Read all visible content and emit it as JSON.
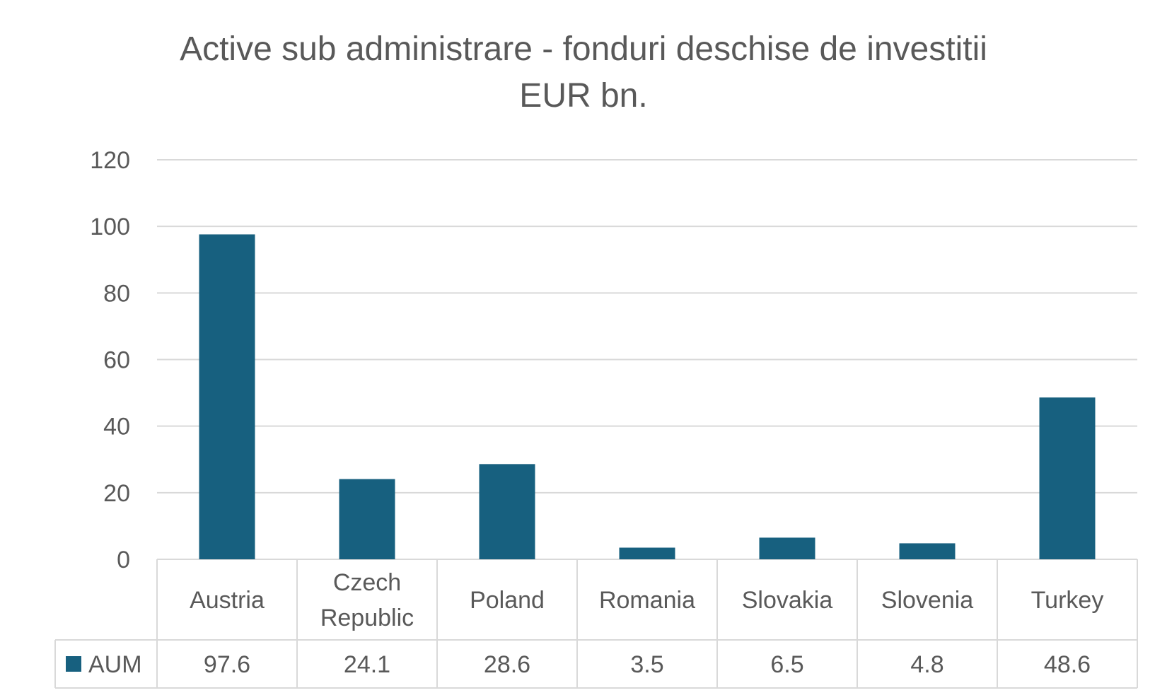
{
  "chart_data": {
    "type": "bar",
    "title": "Active sub administrare - fonduri deschise de investitii",
    "subtitle": "EUR bn.",
    "categories": [
      [
        "Austria"
      ],
      [
        "Czech",
        "Republic"
      ],
      [
        "Poland"
      ],
      [
        "Romania"
      ],
      [
        "Slovakia"
      ],
      [
        "Slovenia"
      ],
      [
        "Turkey"
      ]
    ],
    "series": [
      {
        "name": "AUM",
        "values": [
          97.6,
          24.1,
          28.6,
          3.5,
          6.5,
          4.8,
          48.6
        ],
        "color": "#17607F"
      }
    ],
    "data_table_values": [
      "97.6",
      "24.1",
      "28.6",
      "3.5",
      "6.5",
      "4.8",
      "48.6"
    ],
    "y_ticks": [
      0,
      20,
      40,
      60,
      80,
      100,
      120
    ],
    "ylim": [
      0,
      120
    ],
    "grid": true,
    "legend": "data-table"
  }
}
